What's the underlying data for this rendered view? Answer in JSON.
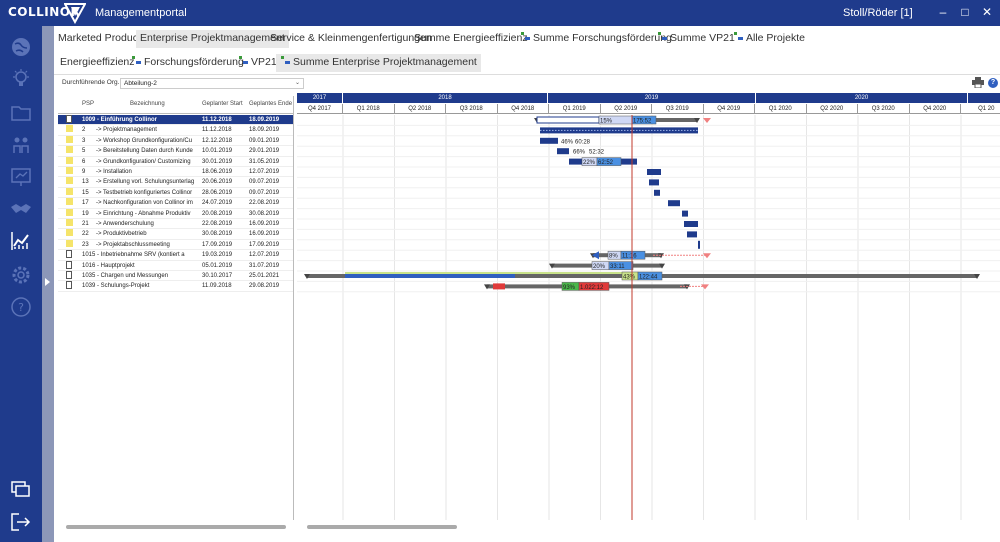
{
  "app": {
    "logo": "COLLINOR",
    "title": "Managementportal",
    "user": "Stoll/Röder  [1]",
    "controls": {
      "minimize": "–",
      "maximize": "□",
      "close": "✕"
    }
  },
  "sidebar": {
    "icons": [
      "globe-icon",
      "lightbulb-icon",
      "folder-icon",
      "people-icon",
      "presentation-icon",
      "handshake-icon",
      "chart-icon",
      "gear-icon",
      "help-icon"
    ],
    "bottom": [
      "windows-icon",
      "logout-icon"
    ]
  },
  "tabs_row1": [
    {
      "label": "Marketed Products",
      "icon": false,
      "active": false
    },
    {
      "label": "Enterprise Projektmanagement",
      "icon": false,
      "active": true
    },
    {
      "label": "Service & Kleinmengenfertigungen",
      "icon": false,
      "active": false
    },
    {
      "label": "Summe Energieeffizienz",
      "icon": false,
      "active": false
    },
    {
      "label": "Summe Forschungsförderung",
      "icon": true,
      "active": false
    },
    {
      "label": "Summe VP21",
      "icon": true,
      "active": false
    },
    {
      "label": "Alle Projekte",
      "icon": true,
      "active": false
    }
  ],
  "tabs_row2": [
    {
      "label": "Energieeffizienz",
      "icon": false,
      "active": false
    },
    {
      "label": "Forschungsförderung",
      "icon": true,
      "active": false
    },
    {
      "label": "VP21",
      "icon": true,
      "active": false
    },
    {
      "label": "Summe Enterprise Projektmanagement",
      "icon": true,
      "active": true
    }
  ],
  "toolbar": {
    "org_label": "Durchführende Org.",
    "org_value": "Abteilung-2",
    "chevron": "⌄",
    "help": "?"
  },
  "grid": {
    "columns": {
      "psp": "PSP",
      "name": "Bezeichnung",
      "start": "Geplanter Start",
      "end": "Geplantes Ende"
    },
    "rows": [
      {
        "icon": "doc",
        "psp": "1009 - Einführung Collinor",
        "name": "",
        "start": "11.12.2018",
        "end": "18.09.2019",
        "selected": true,
        "wide": true
      },
      {
        "icon": "square",
        "psp": "2",
        "name": "-> Projektmanagement",
        "start": "11.12.2018",
        "end": "18.09.2019"
      },
      {
        "icon": "square",
        "psp": "3",
        "name": "-> Workshop Grundkonfiguration/Cu",
        "start": "12.12.2018",
        "end": "09.01.2019"
      },
      {
        "icon": "square",
        "psp": "5",
        "name": "-> Bereitstellung Daten durch Kunde",
        "start": "10.01.2019",
        "end": "29.01.2019"
      },
      {
        "icon": "square",
        "psp": "6",
        "name": "-> Grundkonfiguration/ Customizing",
        "start": "30.01.2019",
        "end": "31.05.2019"
      },
      {
        "icon": "square",
        "psp": "9",
        "name": "-> Installation",
        "start": "18.06.2019",
        "end": "12.07.2019"
      },
      {
        "icon": "square",
        "psp": "13",
        "name": "-> Erstellung vorl. Schulungsunterlag",
        "start": "20.06.2019",
        "end": "09.07.2019"
      },
      {
        "icon": "square",
        "psp": "15",
        "name": "-> Testbetrieb konfiguriertes Collinor",
        "start": "28.06.2019",
        "end": "09.07.2019"
      },
      {
        "icon": "square",
        "psp": "17",
        "name": "-> Nachkonfiguration von Collinor im",
        "start": "24.07.2019",
        "end": "22.08.2019"
      },
      {
        "icon": "square",
        "psp": "19",
        "name": "-> Einrichtung - Abnahme Produktiv",
        "start": "20.08.2019",
        "end": "30.08.2019"
      },
      {
        "icon": "square",
        "psp": "21",
        "name": "-> Anwenderschulung",
        "start": "22.08.2019",
        "end": "16.09.2019"
      },
      {
        "icon": "square",
        "psp": "22",
        "name": "-> Produktivbetrieb",
        "start": "30.08.2019",
        "end": "16.09.2019"
      },
      {
        "icon": "square",
        "psp": "23",
        "name": "-> Projektabschlussmeeting",
        "start": "17.09.2019",
        "end": "17.09.2019"
      },
      {
        "icon": "doc",
        "psp": "1015 - Inbetriebnahme SRV (kontiert a",
        "name": "",
        "start": "19.03.2019",
        "end": "12.07.2019",
        "wide": true
      },
      {
        "icon": "doc",
        "psp": "1016 - Hauptprojekt",
        "name": "",
        "start": "05.01.2019",
        "end": "31.07.2019",
        "wide": true
      },
      {
        "icon": "doc",
        "psp": "1035 - Chargen und Messungen",
        "name": "",
        "start": "30.10.2017",
        "end": "25.01.2021",
        "wide": true
      },
      {
        "icon": "doc",
        "psp": "1039 - Schulungs-Projekt",
        "name": "",
        "start": "11.09.2018",
        "end": "29.08.2019",
        "wide": true
      }
    ]
  },
  "timeline": {
    "years": [
      "2017",
      "2018",
      "2019",
      "2020"
    ],
    "quarters": [
      "Q4 2017",
      "Q1 2018",
      "Q2 2018",
      "Q3 2018",
      "Q4 2018",
      "Q1 2019",
      "Q2 2019",
      "Q3 2019",
      "Q4 2019",
      "Q1 2020",
      "Q2 2020",
      "Q3 2020",
      "Q4 2020",
      "Q1 20"
    ],
    "today_color": "#c0392b",
    "labels": {
      "r0": [
        "15%",
        "175:52"
      ],
      "r2": [
        "46%",
        "60:28"
      ],
      "r3": [
        "66%",
        "52:32"
      ],
      "r4": [
        "22%",
        "62:52"
      ],
      "r13": [
        "8%",
        "11:16"
      ],
      "r14": [
        "20%",
        "33:11"
      ],
      "r15": [
        "43%",
        "122:44"
      ],
      "r16": [
        "93%",
        "1.022:12"
      ]
    }
  }
}
